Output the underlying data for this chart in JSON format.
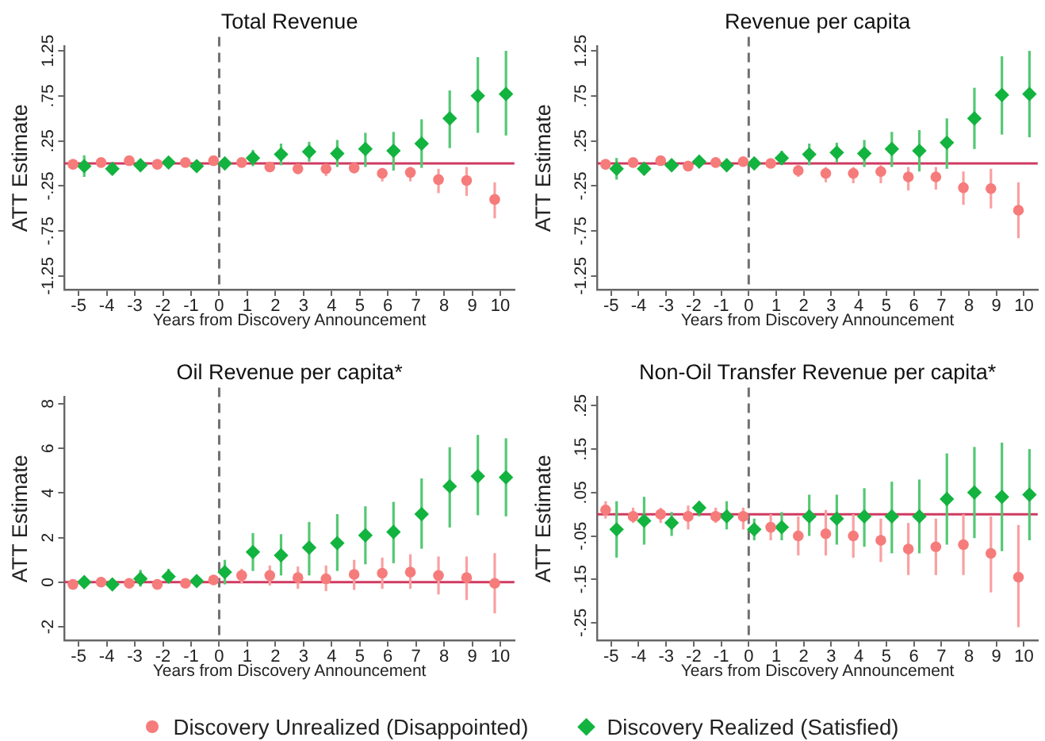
{
  "chart_data": [
    {
      "type": "scatter",
      "title": "Total Revenue",
      "xlabel": "Years from Discovery Announcement",
      "ylabel": "ATT Estimate",
      "xlim": [
        -5.5,
        10.5
      ],
      "xticks": [
        -5,
        -4,
        -3,
        -2,
        -1,
        0,
        1,
        2,
        3,
        4,
        5,
        6,
        7,
        8,
        9,
        10
      ],
      "ylim": [
        -1.4,
        1.3
      ],
      "yticks": [
        -1.25,
        {
          "value": -0.75,
          "label": "-.75"
        },
        {
          "value": -0.25,
          "label": "-.25"
        },
        {
          "value": 0.25,
          "label": ".25"
        },
        {
          "value": 0.75,
          "label": ".75"
        },
        1.25
      ],
      "grid": false,
      "legend": "bottom",
      "ref_lines": [
        {
          "axis": "y",
          "value": 0,
          "color": "#cf3a60",
          "line_style": "solid"
        },
        {
          "axis": "x",
          "value": 0,
          "color": "#707070",
          "line_style": "dashed"
        }
      ],
      "series": [
        {
          "name": "Discovery Unrealized (Disappointed)",
          "color": "#f67b7b",
          "marker": "circle",
          "x": [
            -5.2,
            -4.2,
            -3.2,
            -2.2,
            -1.2,
            -0.2,
            0.8,
            1.8,
            2.8,
            3.8,
            4.8,
            5.8,
            6.8,
            7.8,
            8.8,
            9.8
          ],
          "values": [
            -0.01,
            0.01,
            0.03,
            -0.01,
            0.01,
            0.03,
            0.01,
            -0.04,
            -0.06,
            -0.06,
            -0.05,
            -0.11,
            -0.1,
            -0.18,
            -0.19,
            -0.4
          ],
          "errors": [
            null,
            null,
            null,
            null,
            null,
            null,
            null,
            [
              -0.09,
              0.01
            ],
            [
              -0.12,
              -0.01
            ],
            [
              -0.14,
              -0.01
            ],
            [
              -0.11,
              0.01
            ],
            [
              -0.2,
              -0.05
            ],
            [
              -0.2,
              -0.04
            ],
            [
              -0.33,
              -0.06
            ],
            [
              -0.36,
              -0.04
            ],
            [
              -0.61,
              -0.21
            ]
          ]
        },
        {
          "name": "Discovery Realized (Satisfied)",
          "color": "#12b33e",
          "marker": "diamond",
          "x": [
            -4.8,
            -3.8,
            -2.8,
            -1.8,
            -0.8,
            0.2,
            1.2,
            2.2,
            3.2,
            4.2,
            5.2,
            6.2,
            7.2,
            8.2,
            9.2,
            10.2
          ],
          "values": [
            -0.03,
            -0.06,
            -0.02,
            0.01,
            -0.03,
            0,
            0.06,
            0.1,
            0.13,
            0.11,
            0.16,
            0.14,
            0.22,
            0.5,
            0.75,
            0.77
          ],
          "errors": [
            [
              -0.15,
              0.09
            ],
            null,
            null,
            null,
            null,
            null,
            [
              -0.03,
              0.15
            ],
            [
              -0.02,
              0.22
            ],
            [
              0.02,
              0.24
            ],
            [
              -0.04,
              0.26
            ],
            [
              -0.04,
              0.34
            ],
            [
              -0.08,
              0.35
            ],
            [
              -0.05,
              0.49
            ],
            [
              0.17,
              0.81
            ],
            [
              0.34,
              1.18
            ],
            [
              0.31,
              1.25
            ]
          ]
        }
      ]
    },
    {
      "type": "scatter",
      "title": "Revenue per capita",
      "xlabel": "Years from Discovery Announcement",
      "ylabel": "ATT Estimate",
      "xlim": [
        -5.5,
        10.5
      ],
      "xticks": [
        -5,
        -4,
        -3,
        -2,
        -1,
        0,
        1,
        2,
        3,
        4,
        5,
        6,
        7,
        8,
        9,
        10
      ],
      "ylim": [
        -1.4,
        1.3
      ],
      "yticks": [
        -1.25,
        {
          "value": -0.75,
          "label": "-.75"
        },
        {
          "value": -0.25,
          "label": "-.25"
        },
        {
          "value": 0.25,
          "label": ".25"
        },
        {
          "value": 0.75,
          "label": ".75"
        },
        1.25
      ],
      "grid": false,
      "ref_lines": [
        {
          "axis": "y",
          "value": 0,
          "color": "#cf3a60",
          "line_style": "solid"
        },
        {
          "axis": "x",
          "value": 0,
          "color": "#707070",
          "line_style": "dashed"
        }
      ],
      "series": [
        {
          "color": "#f67b7b",
          "marker": "circle",
          "x": [
            -5.2,
            -4.2,
            -3.2,
            -2.2,
            -1.2,
            -0.2,
            0.8,
            1.8,
            2.8,
            3.8,
            4.8,
            5.8,
            6.8,
            7.8,
            8.8,
            9.8
          ],
          "values": [
            -0.01,
            0.01,
            0.03,
            -0.03,
            0.01,
            0.02,
            0,
            -0.08,
            -0.11,
            -0.11,
            -0.09,
            -0.15,
            -0.15,
            -0.27,
            -0.28,
            -0.52
          ],
          "errors": [
            null,
            null,
            null,
            null,
            null,
            null,
            null,
            [
              -0.15,
              -0.02
            ],
            [
              -0.21,
              -0.04
            ],
            [
              -0.22,
              -0.04
            ],
            [
              -0.22,
              -0.02
            ],
            [
              -0.3,
              -0.04
            ],
            [
              -0.29,
              -0.04
            ],
            [
              -0.46,
              -0.09
            ],
            [
              -0.5,
              -0.06
            ],
            [
              -0.83,
              -0.21
            ]
          ]
        },
        {
          "color": "#12b33e",
          "marker": "diamond",
          "x": [
            -4.8,
            -3.8,
            -2.8,
            -1.8,
            -0.8,
            0.2,
            1.2,
            2.2,
            3.2,
            4.2,
            5.2,
            6.2,
            7.2,
            8.2,
            9.2,
            10.2
          ],
          "values": [
            -0.06,
            -0.06,
            -0.02,
            0.02,
            -0.02,
            0,
            0.06,
            0.1,
            0.12,
            0.11,
            0.16,
            0.14,
            0.23,
            0.5,
            0.76,
            0.77
          ],
          "errors": [
            [
              -0.18,
              0.06
            ],
            null,
            null,
            null,
            null,
            null,
            [
              -0.02,
              0.14
            ],
            [
              -0.02,
              0.22
            ],
            [
              0.01,
              0.23
            ],
            [
              -0.04,
              0.26
            ],
            [
              -0.04,
              0.35
            ],
            [
              -0.09,
              0.37
            ],
            [
              -0.06,
              0.5
            ],
            [
              0.16,
              0.84
            ],
            [
              0.32,
              1.19
            ],
            [
              0.29,
              1.25
            ]
          ]
        }
      ]
    },
    {
      "type": "scatter",
      "title": "Oil Revenue per capita*",
      "xlabel": "Years from Discovery Announcement",
      "ylabel": "ATT Estimate",
      "xlim": [
        -5.5,
        10.5
      ],
      "xticks": [
        -5,
        -4,
        -3,
        -2,
        -1,
        0,
        1,
        2,
        3,
        4,
        5,
        6,
        7,
        8,
        9,
        10
      ],
      "ylim": [
        -2.6,
        8.3
      ],
      "yticks": [
        -2,
        0,
        2,
        4,
        6,
        8
      ],
      "grid": false,
      "ref_lines": [
        {
          "axis": "y",
          "value": 0,
          "color": "#cf3a60",
          "line_style": "solid"
        },
        {
          "axis": "x",
          "value": 0,
          "color": "#707070",
          "line_style": "dashed"
        }
      ],
      "series": [
        {
          "color": "#f67b7b",
          "marker": "circle",
          "x": [
            -5.2,
            -4.2,
            -3.2,
            -2.2,
            -1.2,
            -0.2,
            0.8,
            1.8,
            2.8,
            3.8,
            4.8,
            5.8,
            6.8,
            7.8,
            8.8,
            9.8
          ],
          "values": [
            -0.1,
            0,
            -0.05,
            -0.1,
            -0.05,
            0.1,
            0.3,
            0.3,
            0.2,
            0.15,
            0.35,
            0.4,
            0.45,
            0.3,
            0.2,
            -0.05
          ],
          "errors": [
            null,
            null,
            null,
            null,
            null,
            null,
            [
              -0.05,
              0.6
            ],
            [
              -0.15,
              0.75
            ],
            [
              -0.3,
              0.7
            ],
            [
              -0.4,
              0.75
            ],
            [
              -0.35,
              1.0
            ],
            [
              -0.3,
              1.1
            ],
            [
              -0.3,
              1.25
            ],
            [
              -0.55,
              1.15
            ],
            [
              -0.8,
              1.15
            ],
            [
              -1.4,
              1.3
            ]
          ]
        },
        {
          "color": "#12b33e",
          "marker": "diamond",
          "x": [
            -4.8,
            -3.8,
            -2.8,
            -1.8,
            -0.8,
            0.2,
            1.2,
            2.2,
            3.2,
            4.2,
            5.2,
            6.2,
            7.2,
            8.2,
            9.2,
            10.2
          ],
          "values": [
            0,
            -0.1,
            0.15,
            0.25,
            0.05,
            0.45,
            1.35,
            1.2,
            1.55,
            1.75,
            2.1,
            2.25,
            3.05,
            4.3,
            4.75,
            4.7
          ],
          "errors": [
            null,
            null,
            [
              -0.2,
              0.55
            ],
            [
              -0.05,
              0.6
            ],
            null,
            [
              -0.1,
              1.0
            ],
            [
              0.5,
              2.2
            ],
            [
              0.3,
              2.15
            ],
            [
              0.3,
              2.7
            ],
            [
              0.5,
              3.05
            ],
            [
              0.8,
              3.4
            ],
            [
              0.85,
              3.6
            ],
            [
              1.5,
              4.65
            ],
            [
              2.45,
              6.05
            ],
            [
              3.0,
              6.6
            ],
            [
              2.95,
              6.45
            ]
          ]
        }
      ]
    },
    {
      "type": "scatter",
      "title": "Non-Oil Transfer Revenue per capita*",
      "xlabel": "Years from Discovery Announcement",
      "ylabel": "ATT Estimate",
      "xlim": [
        -5.5,
        10.5
      ],
      "xticks": [
        -5,
        -4,
        -3,
        -2,
        -1,
        0,
        1,
        2,
        3,
        4,
        5,
        6,
        7,
        8,
        9,
        10
      ],
      "ylim": [
        -0.29,
        0.27
      ],
      "yticks": [
        {
          "value": -0.25,
          "label": "-.25"
        },
        {
          "value": -0.15,
          "label": "-.15"
        },
        {
          "value": -0.05,
          "label": "-.05"
        },
        {
          "value": 0.05,
          "label": ".05"
        },
        {
          "value": 0.15,
          "label": ".15"
        },
        {
          "value": 0.25,
          "label": ".25"
        }
      ],
      "grid": false,
      "ref_lines": [
        {
          "axis": "y",
          "value": 0,
          "color": "#cf3a60",
          "line_style": "solid"
        },
        {
          "axis": "x",
          "value": 0,
          "color": "#707070",
          "line_style": "dashed"
        }
      ],
      "series": [
        {
          "color": "#f67b7b",
          "marker": "circle",
          "x": [
            -5.2,
            -4.2,
            -3.2,
            -2.2,
            -1.2,
            -0.2,
            0.8,
            1.8,
            2.8,
            3.8,
            4.8,
            5.8,
            6.8,
            7.8,
            8.8,
            9.8
          ],
          "values": [
            0.01,
            -0.005,
            0,
            -0.005,
            -0.005,
            -0.005,
            -0.03,
            -0.05,
            -0.045,
            -0.05,
            -0.06,
            -0.08,
            -0.075,
            -0.07,
            -0.09,
            -0.145
          ],
          "errors": [
            [
              -0.01,
              0.03
            ],
            [
              -0.02,
              0.015
            ],
            [
              -0.02,
              0.015
            ],
            [
              -0.035,
              0.02
            ],
            [
              -0.02,
              0.015
            ],
            [
              -0.035,
              0.015
            ],
            [
              -0.06,
              0
            ],
            [
              -0.095,
              -0.005
            ],
            [
              -0.095,
              0.01
            ],
            [
              -0.1,
              0
            ],
            [
              -0.11,
              -0.01
            ],
            [
              -0.14,
              -0.02
            ],
            [
              -0.14,
              -0.01
            ],
            [
              -0.14,
              0
            ],
            [
              -0.18,
              -0.005
            ],
            [
              -0.26,
              -0.025
            ]
          ]
        },
        {
          "color": "#12b33e",
          "marker": "diamond",
          "x": [
            -4.8,
            -3.8,
            -2.8,
            -1.8,
            -0.8,
            0.2,
            1.2,
            2.2,
            3.2,
            4.2,
            5.2,
            6.2,
            7.2,
            8.2,
            9.2,
            10.2
          ],
          "values": [
            -0.035,
            -0.015,
            -0.02,
            0.015,
            -0.005,
            -0.035,
            -0.03,
            -0.005,
            -0.01,
            -0.005,
            -0.005,
            -0.005,
            0.035,
            0.05,
            0.04,
            0.045
          ],
          "errors": [
            [
              -0.1,
              0.03
            ],
            [
              -0.07,
              0.04
            ],
            [
              -0.05,
              0.005
            ],
            [
              -0.005,
              0.03
            ],
            [
              -0.035,
              0.03
            ],
            [
              -0.06,
              -0.01
            ],
            [
              -0.06,
              0.005
            ],
            [
              -0.05,
              0.045
            ],
            [
              -0.07,
              0.045
            ],
            [
              -0.075,
              0.06
            ],
            [
              -0.09,
              0.075
            ],
            [
              -0.09,
              0.08
            ],
            [
              -0.07,
              0.14
            ],
            [
              -0.055,
              0.155
            ],
            [
              -0.085,
              0.165
            ],
            [
              -0.06,
              0.15
            ]
          ]
        }
      ]
    }
  ]
}
